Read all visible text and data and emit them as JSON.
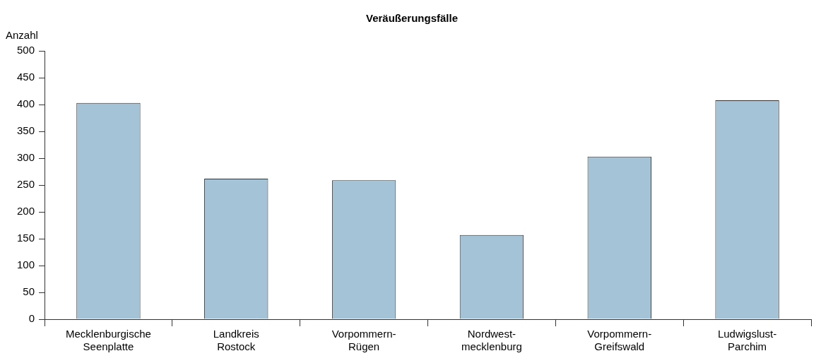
{
  "chart_data": {
    "type": "bar",
    "title": "Veräußerungsfälle",
    "ylabel": "Anzahl",
    "categories": [
      "Mecklenburgische Seenplatte",
      "Landkreis Rostock",
      "Vorpommern-Rügen",
      "Nordwest-mecklenburg",
      "Vorpommern-Greifswald",
      "Ludwigslust-Parchim"
    ],
    "values": [
      403,
      262,
      259,
      157,
      303,
      408
    ],
    "color": "#a5c3d6",
    "ylim": [
      0,
      500
    ],
    "yticks": [
      0,
      50,
      100,
      150,
      200,
      250,
      300,
      350,
      400,
      450,
      500
    ],
    "grid": false,
    "legend": false
  }
}
